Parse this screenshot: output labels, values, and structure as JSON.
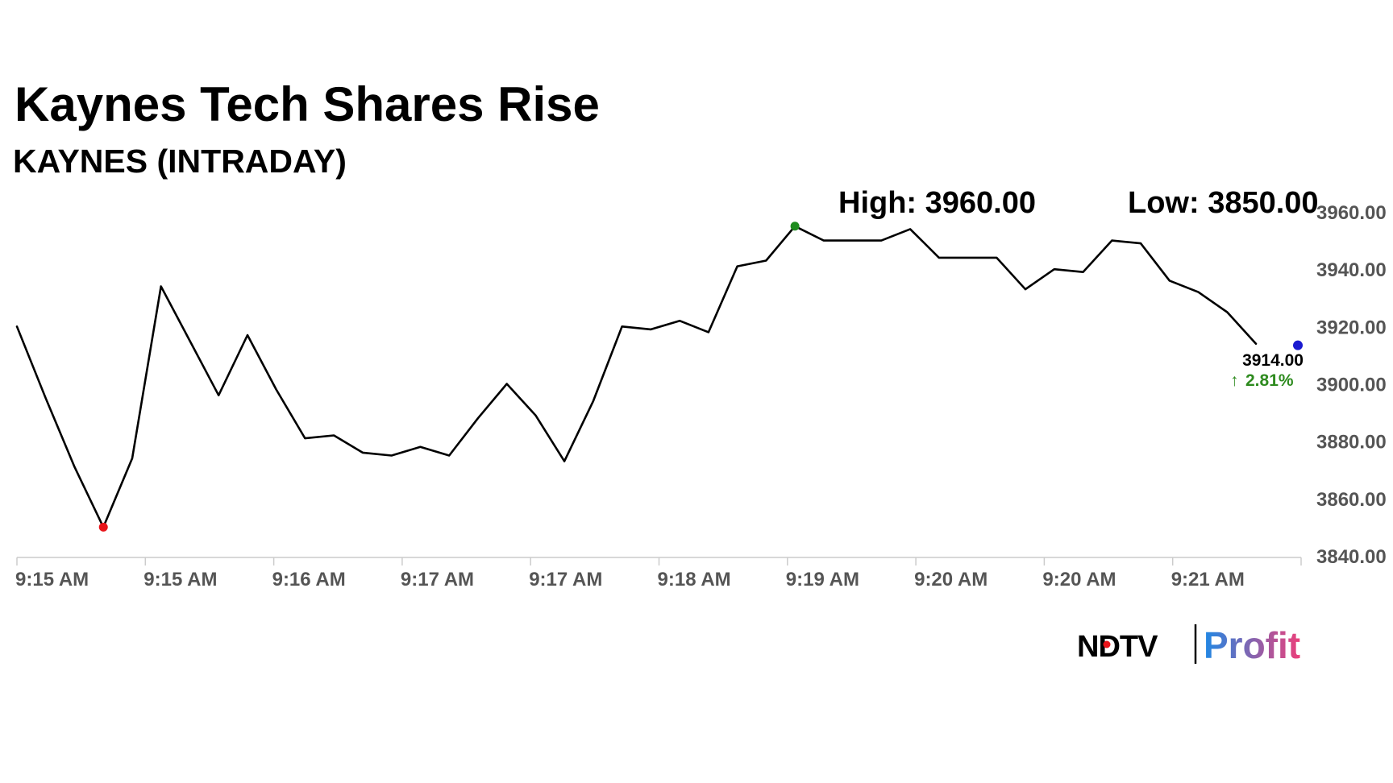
{
  "chart_data": {
    "type": "line",
    "title": "Kaynes Tech Shares Rise",
    "subtitle": "KAYNES (INTRADAY)",
    "high_label": "High: 3960.00",
    "low_label": "Low: 3850.00",
    "last_price_label": "3914.00",
    "change_label": "2.81%",
    "change_direction": "up",
    "y_ticks": [
      "3960.00",
      "3940.00",
      "3920.00",
      "3900.00",
      "3880.00",
      "3860.00",
      "3840.00"
    ],
    "ylim": [
      3840,
      3960
    ],
    "x_ticks": [
      "9:15 AM",
      "9:15 AM",
      "9:16 AM",
      "9:17 AM",
      "9:17 AM",
      "9:18 AM",
      "9:19 AM",
      "9:20 AM",
      "9:20 AM",
      "9:21 AM"
    ],
    "series": [
      {
        "values": [
          3920,
          3895,
          3871,
          3850,
          3874,
          3934,
          3915,
          3896,
          3917,
          3898,
          3881,
          3882,
          3876,
          3875,
          3878,
          3875,
          3888,
          3900,
          3889,
          3873,
          3894,
          3920,
          3919,
          3922,
          3918,
          3941,
          3943,
          3955,
          3950,
          3950,
          3950,
          3954,
          3944,
          3944,
          3944,
          3933,
          3940,
          3939,
          3950,
          3949,
          3936,
          3932,
          3925,
          3914
        ]
      }
    ],
    "high_point": {
      "index": 27,
      "value": 3955
    },
    "low_point": {
      "index": 3,
      "value": 3850
    },
    "last_point": {
      "value": 3914
    },
    "grid": false,
    "colors": {
      "line": "#000000",
      "high_marker": "#1e8c1e",
      "low_marker": "#e8141a",
      "last_marker": "#1a1ad0",
      "change": "#2e8b1f",
      "axis": "#cccccc"
    }
  },
  "branding": {
    "ndtv": "NDTV",
    "profit": "Profit",
    "colors": {
      "profit_start": "#1e88e5",
      "profit_end": "#ec407a"
    }
  }
}
